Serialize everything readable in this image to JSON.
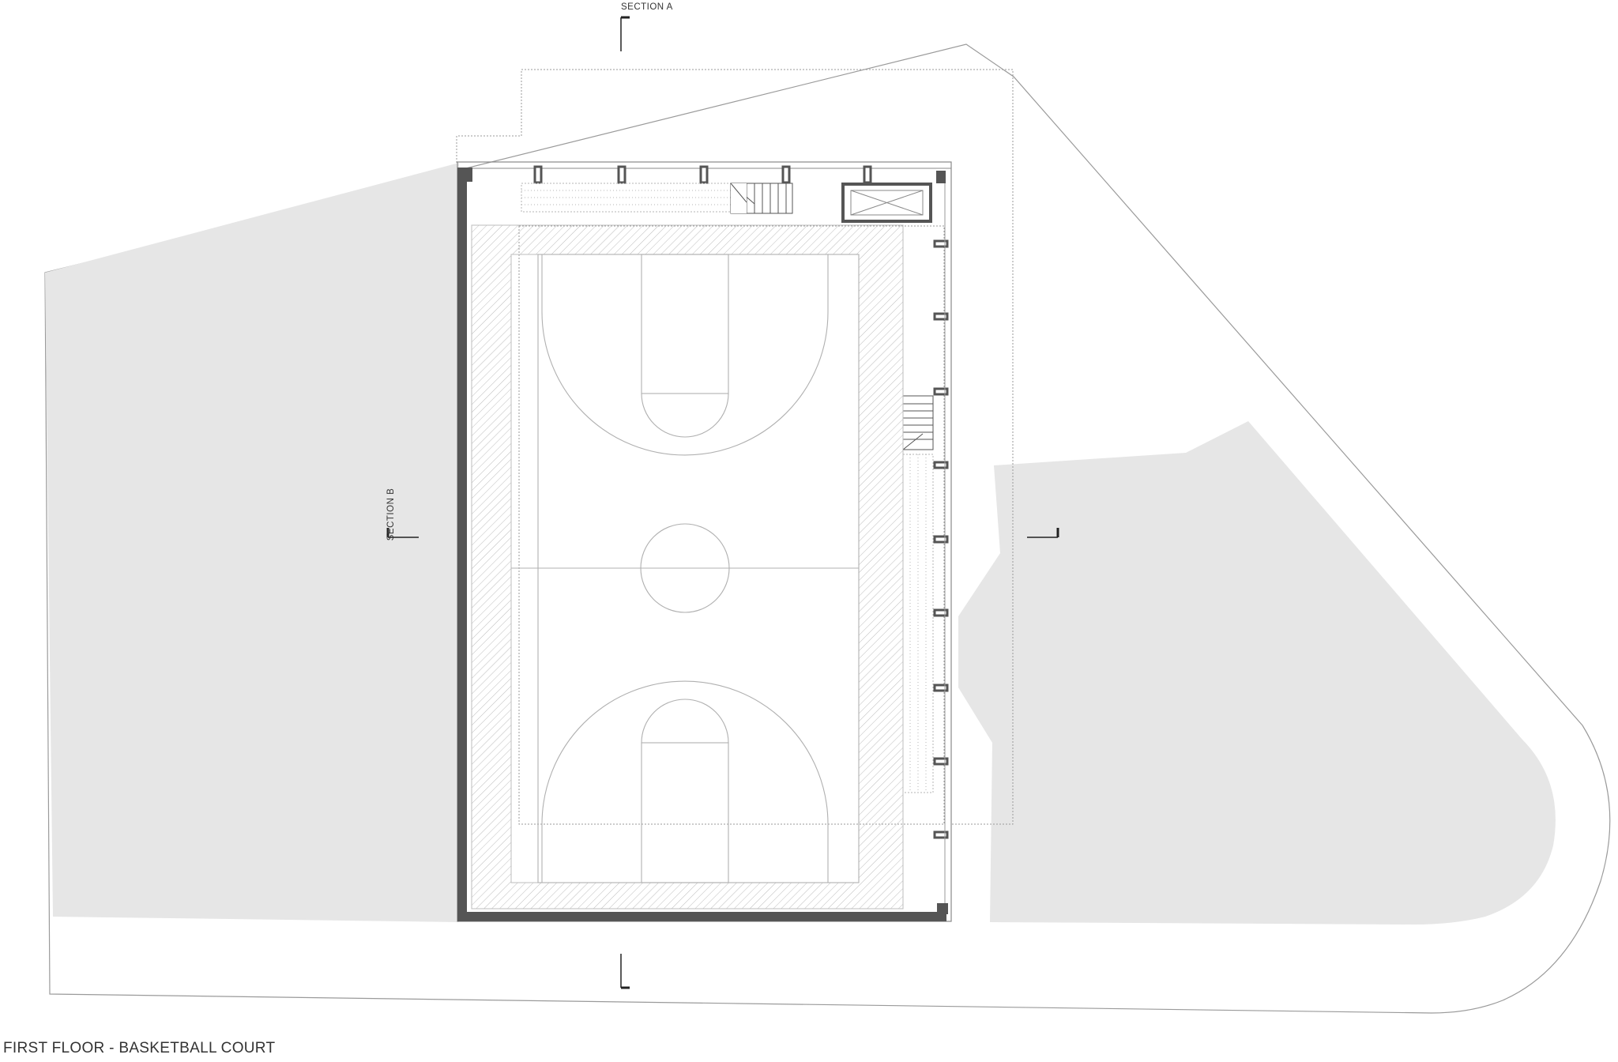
{
  "drawing": {
    "title": "FIRST FLOOR - BASKETBALL COURT",
    "section_a_label": "SECTION A",
    "section_b_label": "SECTION B"
  },
  "colors": {
    "background": "#ffffff",
    "site_fill": "#e6e6e6",
    "line": "#8a8a8a",
    "thin_line": "#b0b0b0",
    "wall": "#555555",
    "hatch": "#bdbdbd",
    "text": "#333333"
  },
  "icons": {
    "section_marker": "section-cut-marker",
    "stair": "stair-icon",
    "elevator": "elevator-icon"
  }
}
